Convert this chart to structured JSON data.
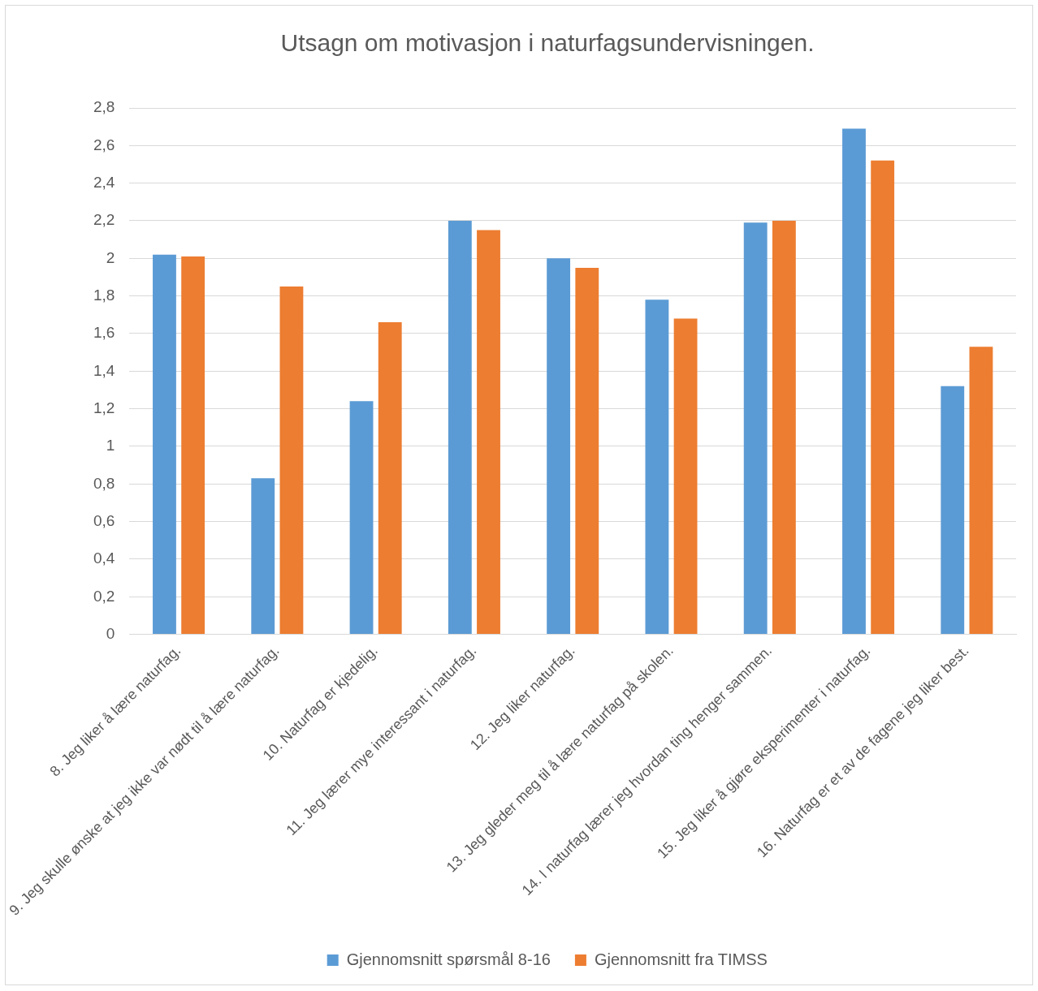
{
  "chart_data": {
    "type": "bar",
    "title": "Utsagn om motivasjon i naturfagsundervisningen.",
    "categories": [
      "8. Jeg liker å lære naturfag.",
      "9. Jeg skulle ønske at jeg ikke var nødt til å lære naturfag.",
      "10. Naturfag er kjedelig.",
      "11. Jeg lærer mye interessant i naturfag.",
      "12. Jeg liker naturfag.",
      "13. Jeg gleder meg til å lære naturfag på skolen.",
      "14. I naturfag lærer jeg hvordan ting henger sammen.",
      "15. Jeg liker å gjøre eksperimenter i naturfag.",
      "16. Naturfag er et av de fagene jeg liker best."
    ],
    "series": [
      {
        "name": "Gjennomsnitt spørsmål 8-16",
        "color": "#5b9bd5",
        "values": [
          2.02,
          0.83,
          1.24,
          2.2,
          2.0,
          1.78,
          2.19,
          2.69,
          1.32
        ]
      },
      {
        "name": "Gjennomsnitt fra TIMSS",
        "color": "#ed7d31",
        "values": [
          2.01,
          1.85,
          1.66,
          2.15,
          1.95,
          1.68,
          2.2,
          2.52,
          1.53
        ]
      }
    ],
    "ylim": [
      0,
      2.8
    ],
    "yticks": [
      0,
      {
        "value": 0.2,
        "label": "0,2"
      },
      {
        "value": 0.4,
        "label": "0,4"
      },
      {
        "value": 0.6,
        "label": "0,6"
      },
      {
        "value": 0.8,
        "label": "0,8"
      },
      1,
      {
        "value": 1.2,
        "label": "1,2"
      },
      {
        "value": 1.4,
        "label": "1,4"
      },
      {
        "value": 1.6,
        "label": "1,6"
      },
      {
        "value": 1.8,
        "label": "1,8"
      },
      2,
      {
        "value": 2.2,
        "label": "2,2"
      },
      {
        "value": 2.4,
        "label": "2,4"
      },
      {
        "value": 2.6,
        "label": "2,6"
      },
      {
        "value": 2.8,
        "label": "2,8"
      }
    ],
    "grid": "y",
    "legend": "bottom"
  }
}
